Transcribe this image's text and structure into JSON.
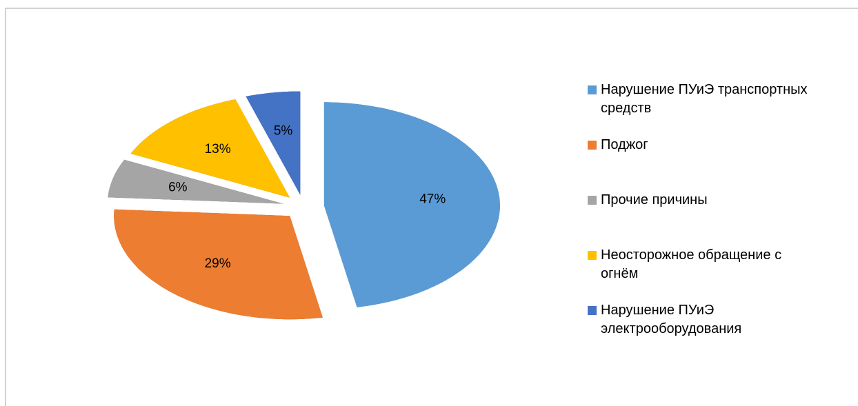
{
  "chart_data": {
    "type": "pie",
    "categories": [
      "Нарушение ПУиЭ транспортных средств",
      "Поджог",
      "Прочие причины",
      "Неосторожное обращение с огнём",
      "Нарушение ПУиЭ электрооборудования"
    ],
    "values": [
      47,
      29,
      6,
      13,
      5
    ],
    "value_labels": [
      "47%",
      "29%",
      "6%",
      "13%",
      "5%"
    ],
    "colors": [
      "#5b9bd5",
      "#ed7d31",
      "#a5a5a5",
      "#ffc000",
      "#4472c4"
    ],
    "legend": "right"
  }
}
